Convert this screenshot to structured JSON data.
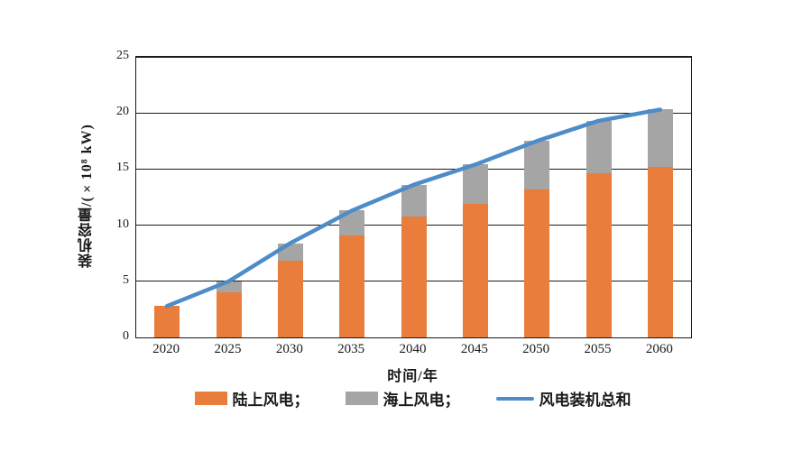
{
  "chart_data": {
    "type": "bar",
    "subtype": "stacked-bars-with-total-line",
    "title": "",
    "categories": [
      "2020",
      "2025",
      "2030",
      "2035",
      "2040",
      "2045",
      "2050",
      "2055",
      "2060"
    ],
    "series": [
      {
        "name": "陆上风电",
        "type": "bar",
        "stack": true,
        "color": "#E87D3C",
        "values": [
          2.8,
          4.0,
          6.8,
          9.1,
          10.8,
          11.9,
          13.2,
          14.6,
          15.2
        ]
      },
      {
        "name": "海上风电",
        "type": "bar",
        "stack": true,
        "color": "#A5A5A5",
        "values": [
          0,
          1.0,
          1.6,
          2.2,
          2.8,
          3.5,
          4.3,
          4.7,
          5.1
        ]
      },
      {
        "name": "风电装机总和",
        "type": "line",
        "color": "#4E8CC8",
        "values": [
          2.8,
          5.0,
          8.4,
          11.3,
          13.6,
          15.4,
          17.5,
          19.3,
          20.3
        ]
      }
    ],
    "xlabel": "时间/年",
    "ylabel": "装机容量/(×10⁸ kW)",
    "ylim": [
      0,
      25
    ],
    "yticks": [
      0,
      5,
      10,
      15,
      20,
      25
    ],
    "grid": true,
    "legend_position": "bottom"
  },
  "legend": {
    "items": [
      {
        "label": "陆上风电；",
        "swatch": "bar",
        "color": "#E87D3C"
      },
      {
        "label": "海上风电；",
        "swatch": "bar",
        "color": "#A5A5A5"
      },
      {
        "label": "风电装机总和",
        "swatch": "line",
        "color": "#4E8CC8"
      }
    ]
  },
  "colors": {
    "background": "#ffffff",
    "axis": "#1a1a1a",
    "grid": "#1a1a1a",
    "text": "#1a1a1a",
    "bar_onshore": "#E87D3C",
    "bar_offshore": "#A5A5A5",
    "line_total": "#4E8CC8"
  }
}
